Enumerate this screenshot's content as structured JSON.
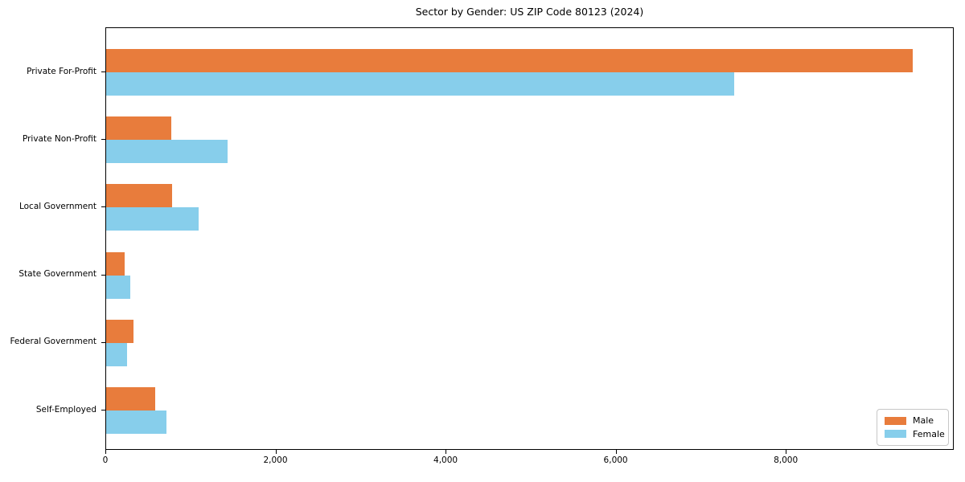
{
  "chart_data": {
    "type": "bar",
    "orientation": "horizontal",
    "title": "Sector by Gender: US ZIP Code 80123 (2024)",
    "categories": [
      "Private For-Profit",
      "Private Non-Profit",
      "Local Government",
      "State Government",
      "Federal Government",
      "Self-Employed"
    ],
    "series": [
      {
        "name": "Male",
        "color": "#E87C3C",
        "values": [
          9500,
          770,
          780,
          220,
          320,
          580
        ]
      },
      {
        "name": "Female",
        "color": "#87CEEB",
        "values": [
          7400,
          1430,
          1090,
          285,
          250,
          710
        ]
      }
    ],
    "xlabel": "",
    "ylabel": "",
    "xlim": [
      0,
      9975
    ],
    "xticks": [
      0,
      2000,
      4000,
      6000,
      8000
    ],
    "xtick_labels": [
      "0",
      "2,000",
      "4,000",
      "6,000",
      "8,000"
    ],
    "grid": false,
    "legend_position": "lower right"
  }
}
